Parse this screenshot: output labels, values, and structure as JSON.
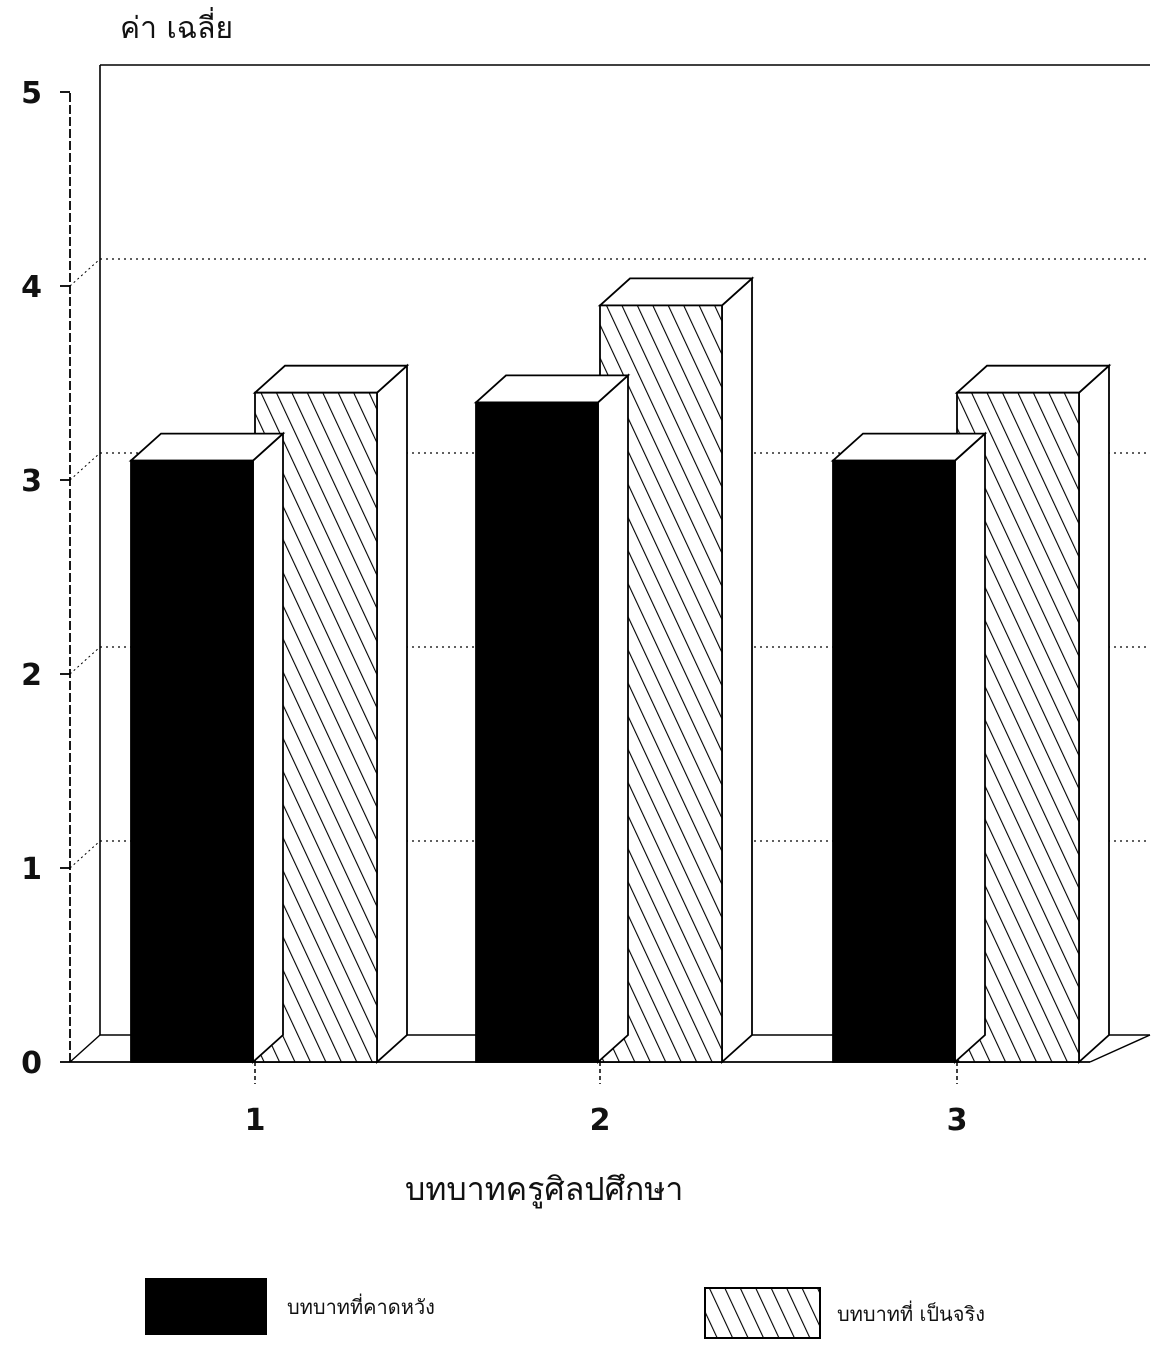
{
  "chart_data": {
    "type": "bar",
    "style": "3d-clustered",
    "title": "",
    "ylabel": "ค่า เฉลี่ย",
    "xlabel": "บทบาทครูศิลปศึกษา",
    "categories": [
      "1",
      "2",
      "3"
    ],
    "ylim": [
      0,
      5
    ],
    "yticks": [
      "0",
      "1",
      "2",
      "3",
      "4",
      "5"
    ],
    "grid": "horizontal-dotted",
    "legend_position": "bottom",
    "series": [
      {
        "name": "บทบาทที่คาดหวัง",
        "values": [
          3.1,
          3.4,
          3.1
        ],
        "fill": "solid",
        "color": "#000000"
      },
      {
        "name": "บทบาทที่ เป็นจริง",
        "values": [
          3.45,
          3.9,
          3.45
        ],
        "fill": "hatched",
        "color": "#000000"
      }
    ]
  }
}
